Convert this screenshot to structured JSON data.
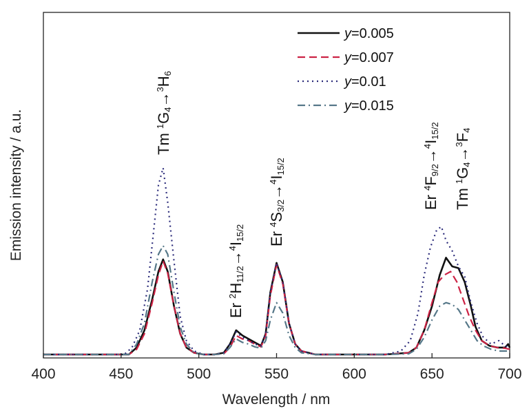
{
  "chart_data": {
    "type": "line",
    "xlabel": "Wavelength / nm",
    "ylabel": "Emission intensity / a.u.",
    "xlim": [
      400,
      700
    ],
    "ylim": [
      0,
      1.0
    ],
    "xticks": [
      "400",
      "450",
      "500",
      "550",
      "600",
      "650",
      "700"
    ],
    "grid": false,
    "legend_position": "top-right",
    "series": [
      {
        "name": "y=0.005",
        "legend_var": "y",
        "legend_val": "=0.005",
        "color": "#111111",
        "dash": "solid",
        "points": [
          [
            400,
            0.01
          ],
          [
            440,
            0.01
          ],
          [
            455,
            0.01
          ],
          [
            460,
            0.03
          ],
          [
            465,
            0.08
          ],
          [
            470,
            0.17
          ],
          [
            474,
            0.25
          ],
          [
            477,
            0.285
          ],
          [
            480,
            0.25
          ],
          [
            484,
            0.15
          ],
          [
            488,
            0.07
          ],
          [
            492,
            0.03
          ],
          [
            497,
            0.015
          ],
          [
            503,
            0.01
          ],
          [
            510,
            0.01
          ],
          [
            516,
            0.015
          ],
          [
            520,
            0.04
          ],
          [
            524,
            0.08
          ],
          [
            528,
            0.065
          ],
          [
            532,
            0.055
          ],
          [
            536,
            0.045
          ],
          [
            540,
            0.035
          ],
          [
            543,
            0.07
          ],
          [
            546,
            0.19
          ],
          [
            550,
            0.275
          ],
          [
            554,
            0.22
          ],
          [
            558,
            0.1
          ],
          [
            562,
            0.04
          ],
          [
            566,
            0.02
          ],
          [
            575,
            0.01
          ],
          [
            620,
            0.01
          ],
          [
            635,
            0.015
          ],
          [
            640,
            0.03
          ],
          [
            645,
            0.08
          ],
          [
            650,
            0.15
          ],
          [
            655,
            0.24
          ],
          [
            659,
            0.29
          ],
          [
            663,
            0.265
          ],
          [
            667,
            0.26
          ],
          [
            671,
            0.22
          ],
          [
            675,
            0.15
          ],
          [
            678,
            0.09
          ],
          [
            682,
            0.05
          ],
          [
            687,
            0.035
          ],
          [
            692,
            0.03
          ],
          [
            697,
            0.03
          ],
          [
            699,
            0.04
          ],
          [
            700,
            0.03
          ]
        ]
      },
      {
        "name": "y=0.007",
        "legend_var": "y",
        "legend_val": "=0.007",
        "color": "#cc2244",
        "dash": "dashed",
        "points": [
          [
            400,
            0.01
          ],
          [
            440,
            0.01
          ],
          [
            455,
            0.01
          ],
          [
            460,
            0.025
          ],
          [
            465,
            0.07
          ],
          [
            470,
            0.16
          ],
          [
            474,
            0.24
          ],
          [
            477,
            0.28
          ],
          [
            480,
            0.245
          ],
          [
            484,
            0.15
          ],
          [
            488,
            0.07
          ],
          [
            492,
            0.03
          ],
          [
            497,
            0.015
          ],
          [
            503,
            0.01
          ],
          [
            510,
            0.01
          ],
          [
            516,
            0.012
          ],
          [
            520,
            0.03
          ],
          [
            524,
            0.065
          ],
          [
            528,
            0.055
          ],
          [
            532,
            0.05
          ],
          [
            536,
            0.04
          ],
          [
            540,
            0.032
          ],
          [
            543,
            0.065
          ],
          [
            546,
            0.18
          ],
          [
            550,
            0.27
          ],
          [
            554,
            0.215
          ],
          [
            558,
            0.1
          ],
          [
            562,
            0.04
          ],
          [
            566,
            0.02
          ],
          [
            575,
            0.01
          ],
          [
            620,
            0.01
          ],
          [
            635,
            0.015
          ],
          [
            640,
            0.03
          ],
          [
            645,
            0.08
          ],
          [
            650,
            0.16
          ],
          [
            654,
            0.22
          ],
          [
            658,
            0.24
          ],
          [
            662,
            0.25
          ],
          [
            666,
            0.22
          ],
          [
            670,
            0.17
          ],
          [
            674,
            0.12
          ],
          [
            678,
            0.08
          ],
          [
            682,
            0.05
          ],
          [
            687,
            0.035
          ],
          [
            692,
            0.03
          ],
          [
            697,
            0.028
          ],
          [
            700,
            0.025
          ]
        ]
      },
      {
        "name": "y=0.01",
        "legend_var": "y",
        "legend_val": "=0.01",
        "color": "#2a2a7a",
        "dash": "dotted",
        "points": [
          [
            400,
            0.01
          ],
          [
            440,
            0.01
          ],
          [
            452,
            0.01
          ],
          [
            457,
            0.03
          ],
          [
            462,
            0.08
          ],
          [
            467,
            0.2
          ],
          [
            471,
            0.37
          ],
          [
            474,
            0.5
          ],
          [
            477,
            0.55
          ],
          [
            480,
            0.45
          ],
          [
            484,
            0.28
          ],
          [
            488,
            0.12
          ],
          [
            492,
            0.05
          ],
          [
            497,
            0.02
          ],
          [
            503,
            0.01
          ],
          [
            510,
            0.01
          ],
          [
            516,
            0.015
          ],
          [
            520,
            0.04
          ],
          [
            524,
            0.075
          ],
          [
            528,
            0.06
          ],
          [
            532,
            0.05
          ],
          [
            536,
            0.04
          ],
          [
            540,
            0.035
          ],
          [
            543,
            0.07
          ],
          [
            546,
            0.19
          ],
          [
            550,
            0.275
          ],
          [
            554,
            0.22
          ],
          [
            558,
            0.1
          ],
          [
            562,
            0.04
          ],
          [
            566,
            0.02
          ],
          [
            575,
            0.01
          ],
          [
            620,
            0.01
          ],
          [
            630,
            0.02
          ],
          [
            636,
            0.05
          ],
          [
            641,
            0.13
          ],
          [
            645,
            0.24
          ],
          [
            649,
            0.32
          ],
          [
            653,
            0.37
          ],
          [
            656,
            0.38
          ],
          [
            659,
            0.34
          ],
          [
            663,
            0.31
          ],
          [
            667,
            0.265
          ],
          [
            671,
            0.235
          ],
          [
            675,
            0.16
          ],
          [
            679,
            0.1
          ],
          [
            683,
            0.06
          ],
          [
            688,
            0.04
          ],
          [
            693,
            0.05
          ],
          [
            697,
            0.035
          ],
          [
            700,
            0.03
          ]
        ]
      },
      {
        "name": "y=0.015",
        "legend_var": "y",
        "legend_val": "=0.015",
        "color": "#557788",
        "dash": "dashdot",
        "points": [
          [
            400,
            0.01
          ],
          [
            440,
            0.01
          ],
          [
            455,
            0.01
          ],
          [
            460,
            0.04
          ],
          [
            465,
            0.1
          ],
          [
            470,
            0.22
          ],
          [
            474,
            0.3
          ],
          [
            477,
            0.325
          ],
          [
            480,
            0.3
          ],
          [
            484,
            0.19
          ],
          [
            488,
            0.09
          ],
          [
            492,
            0.04
          ],
          [
            497,
            0.015
          ],
          [
            503,
            0.01
          ],
          [
            510,
            0.01
          ],
          [
            516,
            0.012
          ],
          [
            520,
            0.03
          ],
          [
            524,
            0.055
          ],
          [
            528,
            0.045
          ],
          [
            532,
            0.04
          ],
          [
            536,
            0.032
          ],
          [
            540,
            0.028
          ],
          [
            543,
            0.05
          ],
          [
            546,
            0.11
          ],
          [
            550,
            0.16
          ],
          [
            554,
            0.13
          ],
          [
            558,
            0.065
          ],
          [
            562,
            0.03
          ],
          [
            566,
            0.015
          ],
          [
            575,
            0.01
          ],
          [
            620,
            0.01
          ],
          [
            635,
            0.012
          ],
          [
            640,
            0.025
          ],
          [
            645,
            0.06
          ],
          [
            650,
            0.11
          ],
          [
            655,
            0.15
          ],
          [
            659,
            0.16
          ],
          [
            663,
            0.155
          ],
          [
            667,
            0.14
          ],
          [
            671,
            0.11
          ],
          [
            675,
            0.08
          ],
          [
            679,
            0.05
          ],
          [
            683,
            0.035
          ],
          [
            688,
            0.025
          ],
          [
            693,
            0.02
          ],
          [
            697,
            0.02
          ],
          [
            700,
            0.02
          ]
        ]
      }
    ],
    "annotations": [
      {
        "id": "tm-blue",
        "parts": [
          [
            "Tm ",
            ""
          ],
          [
            "1",
            "sup"
          ],
          [
            "G",
            ""
          ],
          [
            "4",
            "sub"
          ],
          [
            "→",
            ""
          ],
          [
            "3",
            "sup"
          ],
          [
            "H",
            ""
          ],
          [
            "6",
            "sub"
          ]
        ]
      },
      {
        "id": "er-green1",
        "parts": [
          [
            "Er ",
            ""
          ],
          [
            "2",
            "sup"
          ],
          [
            "H",
            ""
          ],
          [
            "11/2",
            "sub"
          ],
          [
            "→",
            ""
          ],
          [
            "4",
            "sup"
          ],
          [
            "I",
            ""
          ],
          [
            "15/2",
            "sub"
          ]
        ]
      },
      {
        "id": "er-green2",
        "parts": [
          [
            "Er ",
            ""
          ],
          [
            "4",
            "sup"
          ],
          [
            "S",
            ""
          ],
          [
            "3/2",
            "sub"
          ],
          [
            "→",
            ""
          ],
          [
            "4",
            "sup"
          ],
          [
            "I",
            ""
          ],
          [
            "15/2",
            "sub"
          ]
        ]
      },
      {
        "id": "er-red",
        "parts": [
          [
            "Er ",
            ""
          ],
          [
            "4",
            "sup"
          ],
          [
            "F",
            ""
          ],
          [
            "9/2",
            "sub"
          ],
          [
            "→",
            ""
          ],
          [
            "4",
            "sup"
          ],
          [
            "I",
            ""
          ],
          [
            "15/2",
            "sub"
          ]
        ]
      },
      {
        "id": "tm-red",
        "parts": [
          [
            "Tm ",
            ""
          ],
          [
            "1",
            "sup"
          ],
          [
            "G",
            ""
          ],
          [
            "4",
            "sub"
          ],
          [
            "→",
            ""
          ],
          [
            "3",
            "sup"
          ],
          [
            "F",
            ""
          ],
          [
            "4",
            "sub"
          ]
        ]
      }
    ]
  }
}
